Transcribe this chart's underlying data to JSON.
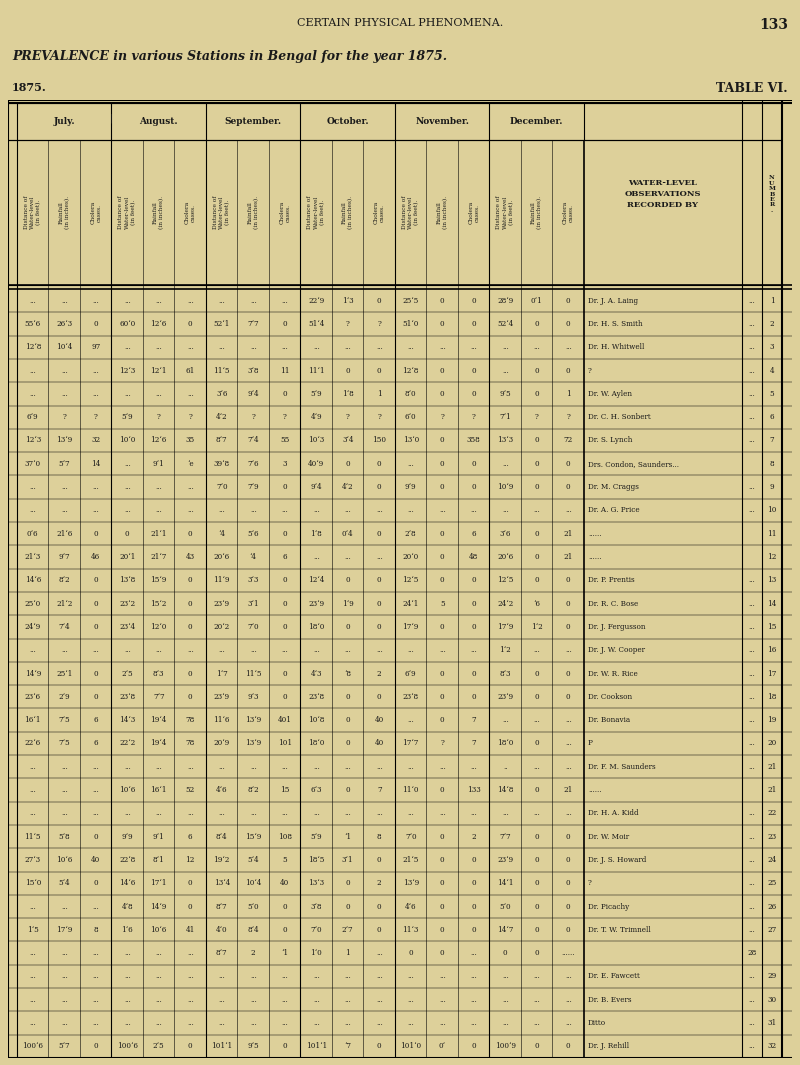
{
  "title_top": "CERTAIN PHYSICAL PHENOMENA.",
  "page_num": "133",
  "subtitle": "PREVALENCE in various Stations in Bengal for the year 1875.",
  "year": "1875.",
  "table_title": "TABLE VI.",
  "bg_color": "#ddd09a",
  "months": [
    "July.",
    "August.",
    "September.",
    "October.",
    "November.",
    "December."
  ],
  "sub_col_labels": [
    "Distance of Water-level (in feet).",
    "Rainfall (in inches).",
    "Cholera cases.",
    "Distance of Water-level (in feet).",
    "Rainfall (in inches).",
    "Cholera cases.",
    "Distance of Water-level (in feet).",
    "Rainfall (in inches).",
    "Cholera cases.",
    "Distance of Water-level (in feet).",
    "Rainfall (in inches).",
    "Cholera cases.",
    "Distance of Water-level (in feet).",
    "Rainfall (in inches).",
    "Cholera cases.",
    "Distance of Water-level (in feet).",
    "Rainfall (in inches).",
    "Cholera cases."
  ],
  "rows": [
    [
      "...",
      "...",
      "...",
      "...",
      "...",
      "...",
      "...",
      "...",
      "...",
      "22‘9",
      "1‘3",
      "0",
      "25‘5",
      "0",
      "0",
      "28‘9",
      "0‘1",
      "0",
      "Dr. J. A. Laing",
      "...",
      "1"
    ],
    [
      "55‘6",
      "26‘3",
      "0",
      "60‘0",
      "12‘6",
      "0",
      "52‘1",
      "7‘7",
      "0",
      "51‘4",
      "?",
      "?",
      "51‘0",
      "0",
      "0",
      "52‘4",
      "0",
      "0",
      "Dr. H. S. Smith",
      "...",
      "2"
    ],
    [
      "12‘8",
      "10‘4",
      "97",
      "...",
      "...",
      "...",
      "...",
      "...",
      "...",
      "...",
      "...",
      "...",
      "...",
      "...",
      "...",
      "...",
      "...",
      "...",
      "Dr. H. Whitwell",
      "...",
      "3"
    ],
    [
      "...",
      "...",
      "...",
      "12‘3",
      "12‘1",
      "61",
      "11‘5",
      "3‘8",
      "11",
      "11‘1",
      "0",
      "0",
      "12‘8",
      "0",
      "0",
      "...",
      "0",
      "0",
      "?",
      "...",
      "4"
    ],
    [
      "...",
      "...",
      "...",
      "...",
      "...",
      "...",
      "3‘6",
      "9‘4",
      "0",
      "5‘9",
      "1‘8",
      "1",
      "8‘0",
      "0",
      "0",
      "9‘5",
      "0",
      "1",
      "Dr. W. Aylen",
      "...",
      "5"
    ],
    [
      "6‘9",
      "?",
      "?",
      "5‘9",
      "?",
      "?",
      "4‘2",
      "?",
      "?",
      "4‘9",
      "?",
      "?",
      "6‘0",
      "?",
      "?",
      "7‘1",
      "?",
      "?",
      "Dr. C. H. Sonbert",
      "...",
      "6"
    ],
    [
      "12‘3",
      "13‘9",
      "32",
      "10‘0",
      "12‘6",
      "35",
      "8‘7",
      "7‘4",
      "55",
      "10‘3",
      "3‘4",
      "150",
      "13‘0",
      "0",
      "358",
      "13‘3",
      "0",
      "72",
      "Dr. S. Lynch",
      "...",
      "7"
    ],
    [
      "37‘0",
      "5‘7",
      "14",
      "...",
      "9‘1",
      "‘e",
      "39‘8",
      "7‘6",
      "3",
      "40‘9",
      "0",
      "0",
      "...",
      "0",
      "0",
      "...",
      "0",
      "0",
      "Drs. Condon, Saunders...",
      "",
      "8"
    ],
    [
      "...",
      "...",
      "...",
      "...",
      "...",
      "...",
      "7‘0",
      "7‘9",
      "0",
      "9‘4",
      "4‘2",
      "0",
      "9‘9",
      "0",
      "0",
      "10‘9",
      "0",
      "0",
      "Dr. M. Craggs",
      "...",
      "9"
    ],
    [
      "...",
      "...",
      "...",
      "...",
      "...",
      "...",
      "...",
      "...",
      "...",
      "...",
      "...",
      "...",
      "...",
      "...",
      "...",
      "...",
      "...",
      "...",
      "Dr. A. G. Price",
      "...",
      "10"
    ],
    [
      "0‘6",
      "21‘6",
      "0",
      "0",
      "21‘1",
      "0",
      "‘4",
      "5‘6",
      "0",
      "1‘8",
      "0‘4",
      "0",
      "2‘8",
      "0",
      "6",
      "3‘6",
      "0",
      "21",
      "......",
      "",
      "11"
    ],
    [
      "21‘3",
      "9‘7",
      "46",
      "20‘1",
      "21‘7",
      "43",
      "20‘6",
      "‘4",
      "6",
      "...",
      "...",
      "...",
      "20‘0",
      "0",
      "48",
      "20‘6",
      "0",
      "21",
      "......",
      "",
      "12"
    ],
    [
      "14‘6",
      "8‘2",
      "0",
      "13‘8",
      "15‘9",
      "0",
      "11‘9",
      "3‘3",
      "0",
      "12‘4",
      "0",
      "0",
      "12‘5",
      "0",
      "0",
      "12‘5",
      "0",
      "0",
      "Dr. P. Prentis",
      "...",
      "13"
    ],
    [
      "25‘0",
      "21‘2",
      "0",
      "23‘2",
      "15‘2",
      "0",
      "23‘9",
      "3‘1",
      "0",
      "23‘9",
      "1‘9",
      "0",
      "24‘1",
      "5",
      "0",
      "24‘2",
      "‘6",
      "0",
      "Dr. R. C. Bose",
      "...",
      "14"
    ],
    [
      "24‘9",
      "7‘4",
      "0",
      "23‘4",
      "12‘0",
      "0",
      "20‘2",
      "7‘0",
      "0",
      "18‘0",
      "0",
      "0",
      "17‘9",
      "0",
      "0",
      "17‘9",
      "1‘2",
      "0",
      "Dr. J. Fergusson",
      "...",
      "15"
    ],
    [
      "...",
      "...",
      "...",
      "...",
      "...",
      "...",
      "...",
      "...",
      "...",
      "...",
      "...",
      "...",
      "...",
      "...",
      "...",
      "1‘2",
      "...",
      "...",
      "Dr. J. W. Cooper",
      "...",
      "16"
    ],
    [
      "14‘9",
      "25‘1",
      "0",
      "2‘5",
      "8‘3",
      "0",
      "1‘7",
      "11‘5",
      "0",
      "4‘3",
      "‘8",
      "2",
      "6‘9",
      "0",
      "0",
      "8‘3",
      "0",
      "0",
      "Dr. W. R. Rice",
      "...",
      "17"
    ],
    [
      "23‘6",
      "2‘9",
      "0",
      "23‘8",
      "7‘7",
      "0",
      "23‘9",
      "9‘3",
      "0",
      "23‘8",
      "0",
      "0",
      "23‘8",
      "0",
      "0",
      "23‘9",
      "0",
      "0",
      "Dr. Cookson",
      "...",
      "18"
    ],
    [
      "16‘1",
      "7‘5",
      "6",
      "14‘3",
      "19‘4",
      "78",
      "11‘6",
      "13‘9",
      "401",
      "10‘8",
      "0",
      "40",
      "...",
      "0",
      "7",
      "...",
      "...",
      "...",
      "Dr. Bonavia",
      "...",
      "19"
    ],
    [
      "22‘6",
      "7‘5",
      "6",
      "22‘2",
      "19‘4",
      "78",
      "20‘9",
      "13‘9",
      "101",
      "18‘0",
      "0",
      "40",
      "17‘7",
      "?",
      "7",
      "18‘0",
      "0",
      "...",
      "P",
      "...",
      "20"
    ],
    [
      "...",
      "...",
      "...",
      "...",
      "...",
      "...",
      "...",
      "...",
      "...",
      "...",
      "...",
      "...",
      "...",
      "...",
      "...",
      "..",
      "...",
      "...",
      "Dr. F. M. Saunders",
      "...",
      "21"
    ],
    [
      "...",
      "...",
      "...",
      "10‘6",
      "16‘1",
      "52",
      "4‘6",
      "8‘2",
      "15",
      "6‘3",
      "0",
      "7",
      "11‘0",
      "0",
      "133",
      "14‘8",
      "0",
      "21",
      "......",
      "",
      "21"
    ],
    [
      "...",
      "...",
      "...",
      "...",
      "...",
      "...",
      "...",
      "...",
      "...",
      "...",
      "...",
      "...",
      "...",
      "...",
      "...",
      "...",
      "...",
      "...",
      "Dr. H. A. Kidd",
      "...",
      "22"
    ],
    [
      "11‘5",
      "5‘8",
      "0",
      "9‘9",
      "9‘1",
      "6",
      "8‘4",
      "15‘9",
      "108",
      "5‘9",
      "‘1",
      "8",
      "7‘0",
      "0",
      "2",
      "7‘7",
      "0",
      "0",
      "Dr. W. Moir",
      "...",
      "23"
    ],
    [
      "27‘3",
      "10‘6",
      "40",
      "22‘8",
      "8‘1",
      "12",
      "19‘2",
      "5‘4",
      "5",
      "18‘5",
      "3‘1",
      "0",
      "21‘5",
      "0",
      "0",
      "23‘9",
      "0",
      "0",
      "Dr. J. S. Howard",
      "...",
      "24"
    ],
    [
      "15‘0",
      "5‘4",
      "0",
      "14‘6",
      "17‘1",
      "0",
      "13‘4",
      "10‘4",
      "40",
      "13‘3",
      "0",
      "2",
      "13‘9",
      "0",
      "0",
      "14‘1",
      "0",
      "0",
      "?",
      "...",
      "25"
    ],
    [
      "...",
      "...",
      "...",
      "4‘8",
      "14‘9",
      "0",
      "8‘7",
      "5‘0",
      "0",
      "3‘8",
      "0",
      "0",
      "4‘6",
      "0",
      "0",
      "5‘0",
      "0",
      "0",
      "Dr. Picachy",
      "...",
      "26"
    ],
    [
      "1‘5",
      "17‘9",
      "8",
      "1‘6",
      "10‘6",
      "41",
      "4‘0",
      "8‘4",
      "0",
      "7‘0",
      "2‘7",
      "0",
      "11‘3",
      "0",
      "0",
      "14‘7",
      "0",
      "0",
      "Dr. T. W. Trimnell",
      "...",
      "27"
    ],
    [
      "...",
      "...",
      "...",
      "...",
      "...",
      "...",
      "8‘7",
      "2",
      "‘1",
      "1‘0",
      "1",
      "...",
      "0",
      "0",
      "...",
      "0",
      "0",
      "......",
      "",
      "28"
    ],
    [
      "...",
      "...",
      "...",
      "...",
      "...",
      "...",
      "...",
      "...",
      "...",
      "...",
      "...",
      "...",
      "...",
      "...",
      "...",
      "...",
      "...",
      "...",
      "Dr. E. Fawcett",
      "...",
      "29"
    ],
    [
      "...",
      "...",
      "...",
      "...",
      "...",
      "...",
      "...",
      "...",
      "...",
      "...",
      "...",
      "...",
      "...",
      "...",
      "...",
      "...",
      "...",
      "...",
      "Dr. B. Evers",
      "...",
      "30"
    ],
    [
      "...",
      "...",
      "...",
      "...",
      "...",
      "...",
      "...",
      "...",
      "...",
      "...",
      "...",
      "...",
      "...",
      "...",
      "...",
      "...",
      "...",
      "...",
      "Ditto",
      "...",
      "31"
    ],
    [
      "100‘6",
      "5‘7",
      "0",
      "100‘6",
      "2‘5",
      "0",
      "101‘1",
      "9‘5",
      "0",
      "101‘1",
      "‘7",
      "0",
      "101‘0",
      "0‘",
      "0",
      "100‘9",
      "0",
      "0",
      "Dr. J. Rehill",
      "...",
      "32"
    ]
  ]
}
